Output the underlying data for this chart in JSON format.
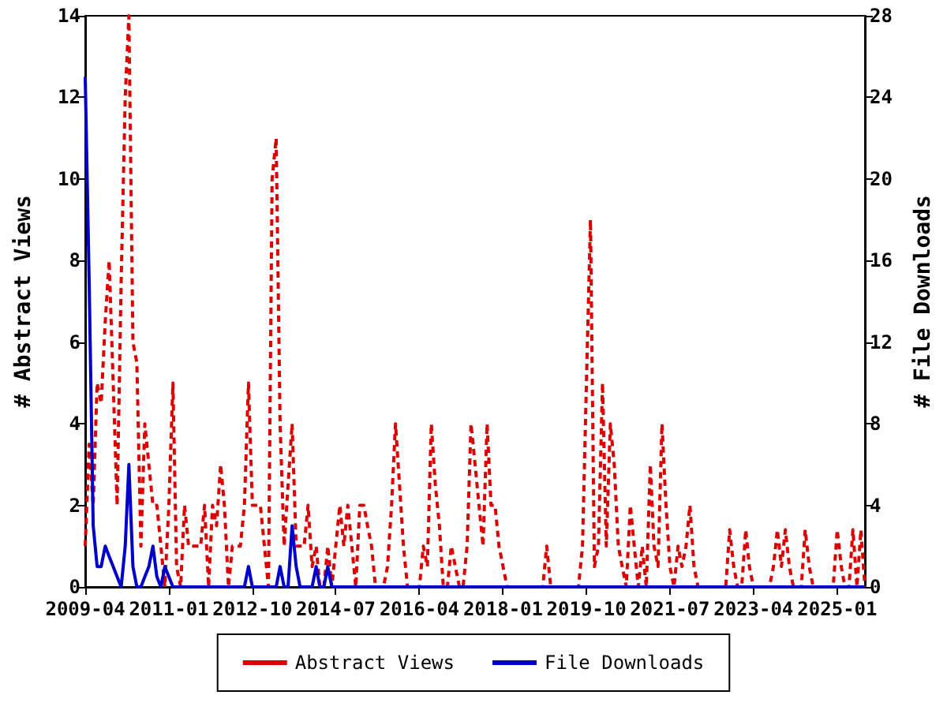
{
  "chart_data": {
    "type": "line",
    "xlabel": null,
    "ylabel": "# Abstract Views",
    "y2label": "# File Downloads",
    "x": [
      "2009-04",
      "2009-05",
      "2009-06",
      "2009-07",
      "2009-08",
      "2009-09",
      "2009-10",
      "2009-11",
      "2009-12",
      "2010-01",
      "2010-02",
      "2010-03",
      "2010-04",
      "2010-05",
      "2010-06",
      "2010-07",
      "2010-08",
      "2010-09",
      "2010-10",
      "2010-11",
      "2010-12",
      "2011-01",
      "2011-02",
      "2011-03",
      "2011-04",
      "2011-05",
      "2011-06",
      "2011-07",
      "2011-08",
      "2011-09",
      "2011-10",
      "2011-11",
      "2011-12",
      "2012-01",
      "2012-02",
      "2012-03",
      "2012-04",
      "2012-05",
      "2012-06",
      "2012-07",
      "2012-08",
      "2012-09",
      "2012-10",
      "2012-11",
      "2012-12",
      "2013-01",
      "2013-02",
      "2013-03",
      "2013-04",
      "2013-05",
      "2013-06",
      "2013-07",
      "2013-08",
      "2013-09",
      "2013-10",
      "2013-11",
      "2013-12",
      "2014-01",
      "2014-02",
      "2014-03",
      "2014-04",
      "2014-05",
      "2014-06",
      "2014-07",
      "2014-08",
      "2014-09",
      "2014-10",
      "2014-11",
      "2014-12",
      "2015-01",
      "2015-02",
      "2015-03",
      "2015-04",
      "2015-05",
      "2015-06",
      "2015-07",
      "2015-08",
      "2015-09",
      "2015-10",
      "2015-11",
      "2015-12",
      "2016-01",
      "2016-02",
      "2016-03",
      "2016-04",
      "2016-05",
      "2016-06",
      "2016-07",
      "2016-08",
      "2016-09",
      "2016-10",
      "2016-11",
      "2016-12",
      "2017-01",
      "2017-02",
      "2017-03",
      "2017-04",
      "2017-05",
      "2017-06",
      "2017-07",
      "2017-08",
      "2017-09",
      "2017-10",
      "2017-11",
      "2017-12",
      "2018-01",
      "2018-02",
      "2018-03",
      "2018-04",
      "2018-05",
      "2018-06",
      "2018-07",
      "2018-08",
      "2018-09",
      "2018-10",
      "2018-11",
      "2018-12",
      "2019-01",
      "2019-02",
      "2019-03",
      "2019-04",
      "2019-05",
      "2019-06",
      "2019-07",
      "2019-08",
      "2019-09",
      "2019-10",
      "2019-11",
      "2019-12",
      "2020-01",
      "2020-02",
      "2020-03",
      "2020-04",
      "2020-05",
      "2020-06",
      "2020-07",
      "2020-08",
      "2020-09",
      "2020-10",
      "2020-11",
      "2020-12",
      "2021-01",
      "2021-02",
      "2021-03",
      "2021-04",
      "2021-05",
      "2021-06",
      "2021-07",
      "2021-08",
      "2021-09",
      "2021-10",
      "2021-11",
      "2021-12",
      "2022-01",
      "2022-02",
      "2022-03",
      "2022-04",
      "2022-05",
      "2022-06",
      "2022-07",
      "2022-08",
      "2022-09",
      "2022-10",
      "2022-11",
      "2022-12",
      "2023-01",
      "2023-02",
      "2023-03",
      "2023-04",
      "2023-05",
      "2023-06",
      "2023-07",
      "2023-08",
      "2023-09",
      "2023-10",
      "2023-11",
      "2023-12",
      "2024-01",
      "2024-02",
      "2024-03",
      "2024-04",
      "2024-05",
      "2024-06",
      "2024-07",
      "2024-08",
      "2024-09",
      "2024-10",
      "2024-11",
      "2024-12",
      "2025-01",
      "2025-02",
      "2025-03",
      "2025-04",
      "2025-05",
      "2025-06",
      "2025-07",
      "2025-08"
    ],
    "series": [
      {
        "name": "Abstract Views",
        "color": "#dd0000",
        "line_style": "dashed",
        "values": [
          1,
          3.5,
          2,
          5,
          4.5,
          6.5,
          8,
          5,
          2,
          7.5,
          12,
          14,
          6,
          5.5,
          1,
          4,
          3,
          2,
          2,
          1,
          0,
          2,
          5,
          0.5,
          0,
          2,
          1,
          1,
          1,
          1,
          2,
          0,
          2,
          1.5,
          3,
          2,
          0,
          1,
          1,
          1,
          2,
          5,
          2,
          2,
          2,
          1,
          0,
          10,
          11,
          4,
          1,
          2.5,
          4,
          1,
          1,
          1,
          2,
          0.5,
          1,
          0,
          0,
          1,
          0,
          1,
          2,
          1,
          2,
          1,
          0,
          2,
          2,
          1.5,
          1,
          0,
          0,
          0,
          0.5,
          2,
          4,
          2.5,
          1,
          0,
          0,
          0,
          0,
          1,
          0.5,
          4,
          2.5,
          1.5,
          0,
          0,
          1,
          0.5,
          0,
          0,
          1,
          4,
          3,
          2,
          1,
          4,
          2,
          2,
          1,
          0.5,
          0,
          0,
          0,
          0,
          0,
          0,
          0,
          0,
          0,
          0,
          1,
          0,
          0,
          0,
          0,
          0,
          0,
          0,
          0,
          1,
          5,
          9,
          0.5,
          1,
          5,
          1,
          4,
          3,
          1,
          0.5,
          0,
          2,
          1,
          0,
          1,
          0,
          3,
          1,
          0.5,
          4,
          2,
          0.5,
          0,
          1,
          0.5,
          1,
          2,
          0.5,
          0,
          0,
          0,
          0,
          0,
          0,
          0,
          0,
          1.4,
          0.5,
          0,
          0,
          1.4,
          0.5,
          0,
          0,
          0,
          0,
          0,
          0.5,
          1.4,
          0.5,
          1.4,
          0.5,
          0,
          0,
          0,
          1.4,
          0.5,
          0,
          0,
          0,
          0,
          0,
          0,
          1.4,
          0.5,
          0,
          0,
          1.4,
          0,
          1.4,
          0
        ]
      },
      {
        "name": "File Downloads",
        "color": "#0000cc",
        "line_style": "solid",
        "axis": "y2",
        "values": [
          25,
          15,
          3,
          1,
          1,
          2,
          1.5,
          1,
          0.5,
          0,
          2,
          6,
          1,
          0,
          0,
          0.5,
          1,
          2,
          0.5,
          0,
          1,
          0.5,
          0,
          0,
          0,
          0,
          0,
          0,
          0,
          0,
          0,
          0,
          0,
          0,
          0,
          0,
          0,
          0,
          0,
          0,
          0,
          1,
          0,
          0,
          0,
          0,
          0,
          0,
          0,
          1,
          0,
          0,
          3,
          1,
          0,
          0,
          0,
          0,
          1,
          0,
          0,
          1,
          0,
          0,
          0,
          0,
          0,
          0,
          0,
          0,
          0,
          0,
          0,
          0,
          0,
          0,
          0,
          0,
          0,
          0,
          0,
          0,
          0,
          0,
          0,
          0,
          0,
          0,
          0,
          0,
          0,
          0,
          0,
          0,
          0,
          0,
          0,
          0,
          0,
          0,
          0,
          0,
          0,
          0,
          0,
          0,
          0,
          0,
          0,
          0,
          0,
          0,
          0,
          0,
          0,
          0,
          0,
          0,
          0,
          0,
          0,
          0,
          0,
          0,
          0,
          0,
          0,
          0,
          0,
          0,
          0,
          0,
          0,
          0,
          0,
          0,
          0,
          0,
          0,
          0,
          0,
          0,
          0,
          0,
          0,
          0,
          0,
          0,
          0,
          0,
          0,
          0,
          0,
          0,
          0,
          0,
          0,
          0,
          0,
          0,
          0,
          0,
          0,
          0,
          0,
          0,
          0,
          0,
          0,
          0,
          0,
          0,
          0,
          0,
          0,
          0,
          0,
          0,
          0,
          0,
          0,
          0,
          0,
          0,
          0,
          0,
          0,
          0,
          0,
          0,
          0,
          0,
          0,
          0,
          0,
          0,
          0
        ]
      }
    ],
    "xlim": [
      "2009-04",
      "2025-08"
    ],
    "xticks": [
      "2009-04",
      "2011-01",
      "2012-10",
      "2014-07",
      "2016-04",
      "2018-01",
      "2019-10",
      "2021-07",
      "2023-04",
      "2025-01"
    ],
    "ylim": [
      0,
      14
    ],
    "yticks": [
      0,
      2,
      4,
      6,
      8,
      10,
      12,
      14
    ],
    "y2lim": [
      0,
      28
    ],
    "y2ticks": [
      0,
      4,
      8,
      12,
      16,
      20,
      24,
      28
    ],
    "grid": false,
    "legend": "bottom",
    "marker": "none"
  }
}
